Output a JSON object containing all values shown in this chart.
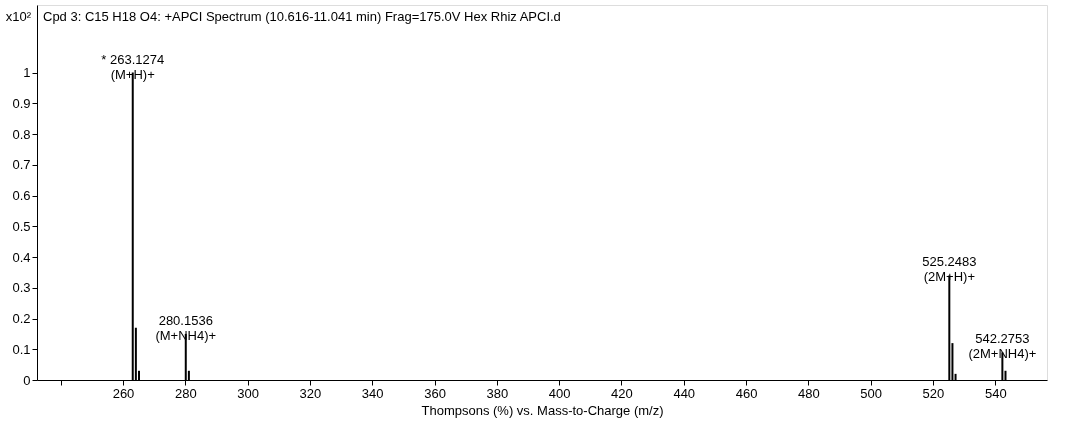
{
  "chart_data": {
    "type": "bar",
    "title": "Cpd 3: C15 H18 O4: +APCI Spectrum (10.616-11.041 min) Frag=175.0V Hex Rhiz APCI.d",
    "xlabel": "Thompsons (%) vs. Mass-to-Charge (m/z)",
    "ylabel": "x10²",
    "x": [
      263.13,
      264.13,
      265.13,
      280.15,
      281.15,
      525.25,
      526.25,
      527.25,
      542.28,
      543.28
    ],
    "values": [
      1.0,
      0.17,
      0.03,
      0.15,
      0.03,
      0.34,
      0.12,
      0.02,
      0.09,
      0.03
    ],
    "color": "#000000",
    "xlim": [
      234,
      555
    ],
    "xticks": [
      {
        "value": 240,
        "label": null
      },
      260,
      280,
      300,
      320,
      340,
      360,
      380,
      400,
      420,
      440,
      460,
      480,
      500,
      520,
      540
    ],
    "ylim": [
      0,
      1.22
    ],
    "yticks": [
      0,
      0.1,
      0.2,
      0.3,
      0.4,
      0.5,
      0.6,
      0.7,
      0.8,
      0.9,
      1
    ],
    "grid": false,
    "annotations": [
      {
        "text": "* 263.1274\n(M+H)+",
        "x": 263.13,
        "y": 1.0
      },
      {
        "text": "280.1536\n(M+NH4)+",
        "x": 280.15,
        "y": 0.15
      },
      {
        "text": "525.2483\n(2M+H)+",
        "x": 525.25,
        "y": 0.34
      },
      {
        "text": "542.2753\n(2M+NH4)+",
        "x": 542.28,
        "y": 0.09
      }
    ]
  }
}
